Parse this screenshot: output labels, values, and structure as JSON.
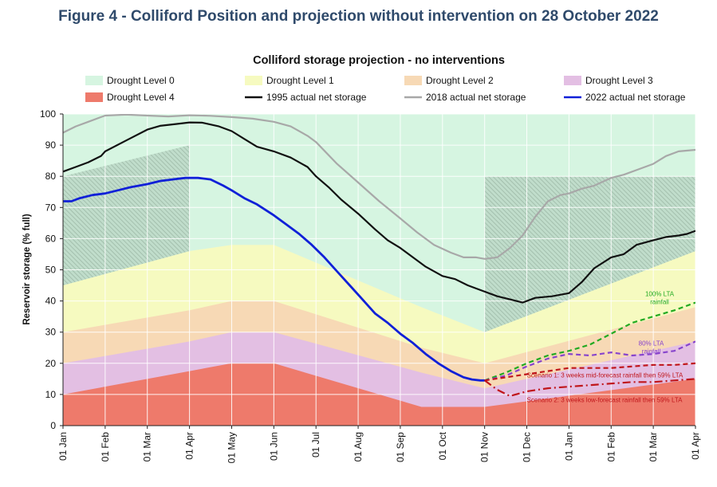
{
  "figure_title": "Figure 4 - Colliford Position and projection without intervention on 28 October 2022",
  "chart_data": {
    "type": "area",
    "title": "Colliford storage projection - no interventions",
    "ylabel": "Reservoir storage (% full)",
    "xlabel": "",
    "ylim": [
      0,
      100
    ],
    "yticks": [
      0,
      10,
      20,
      30,
      40,
      50,
      60,
      70,
      80,
      90,
      100
    ],
    "xlim": [
      0,
      15
    ],
    "xticks": [
      "01 Jan",
      "01 Feb",
      "01 Mar",
      "01 Apr",
      "01 May",
      "01 Jun",
      "01 Jul",
      "01 Aug",
      "01 Sep",
      "01 Oct",
      "01 Nov",
      "01 Dec",
      "01 Jan",
      "01 Feb",
      "01 Mar",
      "01 Apr"
    ],
    "grid": true,
    "legend_position": "top",
    "legend": [
      {
        "label": "Drought Level 0",
        "kind": "fill",
        "color": "#d6f5e1"
      },
      {
        "label": "Drought Level 1",
        "kind": "fill",
        "color": "#f6fac0"
      },
      {
        "label": "Drought Level 2",
        "kind": "fill",
        "color": "#f7d9b5"
      },
      {
        "label": "Drought Level 3",
        "kind": "fill",
        "color": "#e3bfe3"
      },
      {
        "label": "Drought Level 4",
        "kind": "fill",
        "color": "#ee7a6b"
      },
      {
        "label": "1995 actual net storage",
        "kind": "line",
        "color": "#111111"
      },
      {
        "label": "2018 actual net storage",
        "kind": "line",
        "color": "#a8a8a8"
      },
      {
        "label": "2022 actual net storage",
        "kind": "line",
        "color": "#1020d8"
      }
    ],
    "bands": {
      "x": [
        0,
        3,
        4,
        5,
        8.5,
        10,
        15
      ],
      "level1_top": [
        45,
        56,
        58,
        58,
        38,
        30,
        56
      ],
      "level2_top": [
        30,
        37,
        40,
        40,
        25,
        20,
        38
      ],
      "level3_top": [
        20,
        27,
        30,
        30,
        17,
        12,
        27
      ],
      "level4_top": [
        10,
        17.5,
        20,
        20,
        6,
        6,
        15
      ]
    },
    "hatched_regions": [
      {
        "x": [
          0,
          3
        ],
        "top": [
          80,
          90
        ],
        "bottom": [
          45,
          56
        ]
      },
      {
        "x": [
          10,
          15
        ],
        "top": [
          80,
          80
        ],
        "bottom": [
          30,
          56
        ]
      }
    ],
    "series": [
      {
        "name": "1995 actual net storage",
        "color": "#111111",
        "width": 2.2,
        "x": [
          0,
          0.3,
          0.6,
          0.9,
          1.0,
          1.5,
          2.0,
          2.3,
          2.7,
          3.0,
          3.3,
          3.7,
          4.0,
          4.3,
          4.6,
          5.0,
          5.4,
          5.8,
          6.0,
          6.3,
          6.6,
          7.0,
          7.4,
          7.7,
          8.0,
          8.3,
          8.6,
          9.0,
          9.3,
          9.6,
          10.0,
          10.3,
          10.6,
          10.9,
          11.2,
          11.6,
          12.0,
          12.3,
          12.6,
          13.0,
          13.3,
          13.6,
          14.0,
          14.3,
          14.6,
          14.8,
          15.0
        ],
        "y": [
          81.5,
          83,
          84.5,
          86.5,
          88,
          91.5,
          95,
          96.2,
          96.8,
          97.3,
          97.2,
          96,
          94.5,
          92,
          89.5,
          88,
          86,
          83,
          80,
          76.5,
          72.5,
          68,
          63,
          59.5,
          57,
          54,
          51,
          48,
          47,
          45,
          43,
          41.5,
          40.5,
          39.5,
          41,
          41.5,
          42.5,
          46,
          50.5,
          54,
          55,
          58,
          59.5,
          60.5,
          61,
          61.5,
          62.5
        ]
      },
      {
        "name": "2018 actual net storage",
        "color": "#a8a8a8",
        "width": 2.2,
        "x": [
          0,
          0.3,
          0.6,
          0.9,
          1.0,
          1.5,
          2.0,
          2.5,
          3.0,
          3.5,
          4.0,
          4.5,
          5.0,
          5.4,
          5.8,
          6.0,
          6.5,
          7.0,
          7.5,
          8.0,
          8.4,
          8.8,
          9.2,
          9.5,
          9.8,
          10.0,
          10.3,
          10.6,
          10.9,
          11.2,
          11.5,
          11.8,
          12.0,
          12.3,
          12.6,
          13.0,
          13.3,
          13.6,
          14.0,
          14.3,
          14.6,
          15.0
        ],
        "y": [
          94,
          96,
          97.5,
          99,
          99.5,
          99.8,
          99.5,
          99.2,
          99.6,
          99.4,
          99,
          98.5,
          97.5,
          96,
          93,
          91,
          84,
          78,
          72,
          66.5,
          62,
          58,
          55.5,
          54,
          54,
          53.5,
          54,
          57,
          61,
          67,
          72,
          74,
          74.5,
          76,
          77,
          79.5,
          80.5,
          82,
          84,
          86.5,
          88,
          88.5
        ]
      },
      {
        "name": "2022 actual net storage",
        "color": "#1020d8",
        "width": 2.8,
        "x": [
          0,
          0.2,
          0.4,
          0.7,
          1.0,
          1.3,
          1.6,
          2.0,
          2.3,
          2.6,
          2.9,
          3.0,
          3.2,
          3.5,
          3.8,
          4.0,
          4.3,
          4.6,
          5.0,
          5.3,
          5.6,
          5.9,
          6.2,
          6.5,
          6.8,
          7.1,
          7.4,
          7.7,
          8.0,
          8.3,
          8.6,
          8.9,
          9.2,
          9.5,
          9.7,
          9.9,
          10.0
        ],
        "y": [
          72,
          72,
          73,
          74,
          74.5,
          75.5,
          76.5,
          77.5,
          78.5,
          79,
          79.5,
          79.5,
          79.5,
          79,
          77,
          75.5,
          73,
          71,
          67.5,
          64.5,
          61.5,
          58,
          54,
          49.5,
          45,
          40.5,
          36,
          33,
          29.5,
          26.5,
          23,
          20,
          17.5,
          15.5,
          14.8,
          14.5,
          14.5
        ]
      }
    ],
    "projections": [
      {
        "label": "100% LTA rainfall",
        "color": "#22aa22",
        "dash": "6,4",
        "width": 2.2,
        "x": [
          10,
          10.5,
          11,
          11.5,
          12,
          12.5,
          13,
          13.5,
          14,
          14.5,
          15
        ],
        "y": [
          14.5,
          17,
          20,
          22.5,
          24,
          26,
          29.5,
          33,
          35,
          37,
          39.5
        ]
      },
      {
        "label": "80% LTA rainfall",
        "color": "#8844cc",
        "dash": "6,4",
        "width": 2.2,
        "x": [
          10,
          10.5,
          11,
          11.5,
          12,
          12.5,
          13,
          13.5,
          14,
          14.5,
          15
        ],
        "y": [
          14.5,
          16,
          19,
          21.5,
          23,
          22.5,
          23.5,
          22.5,
          23,
          24,
          27
        ]
      },
      {
        "label": "Scenario 1: 3 weeks mid-forecast rainfall then 59% LTA",
        "color": "#c0161b",
        "dash": "6,4",
        "width": 2.2,
        "x": [
          10,
          10.5,
          11,
          11.5,
          12,
          12.5,
          13,
          13.5,
          14,
          14.5,
          15
        ],
        "y": [
          14.5,
          15.5,
          16.5,
          17.5,
          18.5,
          18.5,
          18.5,
          19,
          19.5,
          19.5,
          20
        ]
      },
      {
        "label": "Scenario 2: 3 weeks low-forecast rainfall then 59% LTA",
        "color": "#c0161b",
        "dash": "10,4,2,4",
        "width": 2.2,
        "x": [
          10,
          10.3,
          10.6,
          11,
          11.5,
          12,
          12.5,
          13,
          13.5,
          14,
          14.5,
          15
        ],
        "y": [
          14.5,
          11.5,
          9.5,
          11,
          12,
          12.5,
          13,
          13.5,
          14,
          14,
          14.5,
          15
        ]
      }
    ]
  }
}
